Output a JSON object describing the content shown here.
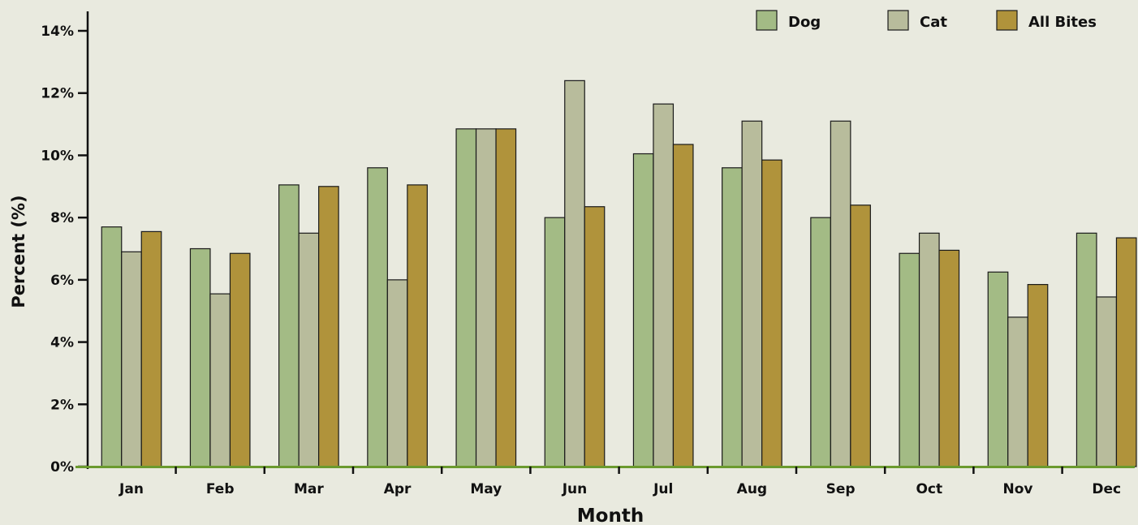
{
  "chart_data": {
    "type": "bar",
    "categories": [
      "Jan",
      "Feb",
      "Mar",
      "Apr",
      "May",
      "Jun",
      "Jul",
      "Aug",
      "Sep",
      "Oct",
      "Nov",
      "Dec"
    ],
    "series": [
      {
        "name": "Dog",
        "color": "#a3bb85",
        "values": [
          7.7,
          7.0,
          9.05,
          9.6,
          10.85,
          8.0,
          10.05,
          9.6,
          8.0,
          6.85,
          6.25,
          7.5
        ]
      },
      {
        "name": "Cat",
        "color": "#b8bc9c",
        "values": [
          6.9,
          5.55,
          7.5,
          6.0,
          10.85,
          12.4,
          11.65,
          11.1,
          11.1,
          7.5,
          4.8,
          5.45
        ]
      },
      {
        "name": "All Bites",
        "color": "#b0933b",
        "values": [
          7.55,
          6.85,
          9.0,
          9.05,
          10.85,
          8.35,
          10.35,
          9.85,
          8.4,
          6.95,
          5.85,
          7.35
        ]
      }
    ],
    "xlabel": "Month",
    "ylabel": "Percent (%)",
    "ylim": [
      0,
      14.5
    ],
    "yticks": [
      0,
      2,
      4,
      6,
      8,
      10,
      12,
      14
    ],
    "ytick_labels": [
      "0%",
      "2%",
      "4%",
      "6%",
      "8%",
      "10%",
      "12%",
      "14%"
    ],
    "grid": false,
    "legend_position": "top-right",
    "colors": {
      "background": "#e9eadf",
      "baseline": "#6b9a2e",
      "axis": "#111111"
    }
  }
}
